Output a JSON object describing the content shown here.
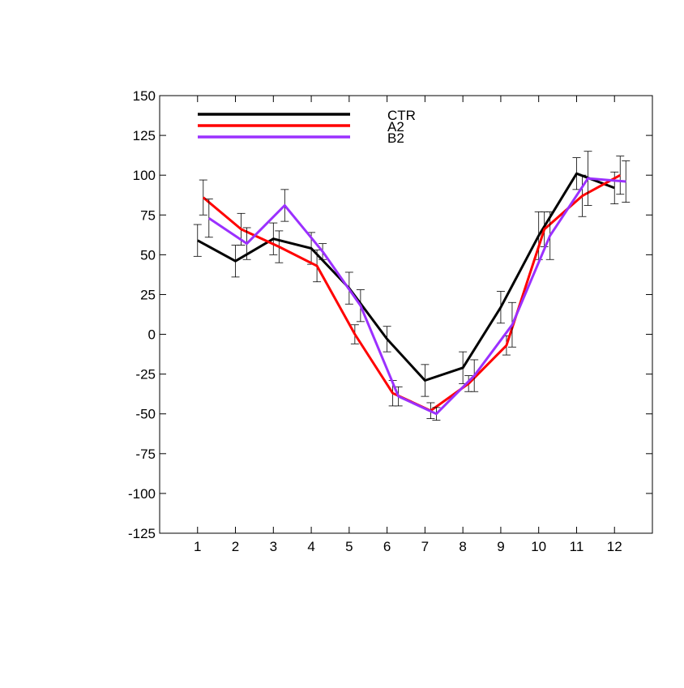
{
  "chart_data": {
    "type": "line",
    "title": "",
    "xlabel": "",
    "ylabel": "",
    "categories": [
      "1",
      "2",
      "3",
      "4",
      "5",
      "6",
      "7",
      "8",
      "9",
      "10",
      "11",
      "12"
    ],
    "x": [
      1,
      2,
      3,
      4,
      5,
      6,
      7,
      8,
      9,
      10,
      11,
      12
    ],
    "xlim": [
      0,
      13
    ],
    "ylim": [
      -125,
      150
    ],
    "yticks": [
      -125,
      -100,
      -75,
      -50,
      -25,
      0,
      25,
      50,
      75,
      100,
      125,
      150
    ],
    "grid": false,
    "legend_position": "top-left",
    "error_bars": true,
    "series": [
      {
        "name": "CTR",
        "color": "#000000",
        "x": [
          1,
          2,
          3,
          4,
          5,
          6,
          7,
          8,
          9,
          10,
          11,
          12
        ],
        "values": [
          59,
          46,
          60,
          54,
          29,
          -3,
          -29,
          -21,
          17,
          62,
          101,
          92
        ],
        "errors": [
          10,
          10,
          10,
          10,
          10,
          8,
          10,
          10,
          10,
          15,
          10,
          10
        ]
      },
      {
        "name": "A2",
        "color": "#ff0000",
        "x": [
          1.15,
          2.15,
          3.15,
          4.15,
          5.15,
          6.15,
          7.15,
          8.15,
          9.15,
          10.15,
          11.15,
          12.15
        ],
        "values": [
          86,
          66,
          55,
          43,
          0,
          -37,
          -48,
          -31,
          -7,
          66,
          87,
          100
        ],
        "errors": [
          11,
          10,
          10,
          10,
          6,
          8,
          5,
          5,
          6,
          11,
          13,
          12
        ]
      },
      {
        "name": "B2",
        "color": "#9b30ff",
        "x": [
          1.3,
          2.3,
          3.3,
          4.3,
          5.3,
          6.3,
          7.3,
          8.3,
          9.3,
          10.3,
          11.3,
          12.3
        ],
        "values": [
          73,
          57,
          81,
          52,
          18,
          -39,
          -50,
          -26,
          6,
          62,
          98,
          96
        ],
        "errors": [
          12,
          10,
          10,
          5,
          10,
          6,
          4,
          10,
          14,
          15,
          17,
          13
        ]
      }
    ]
  }
}
